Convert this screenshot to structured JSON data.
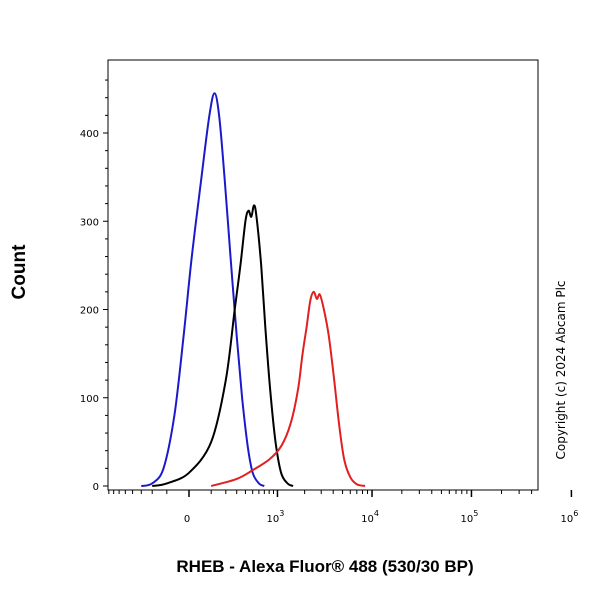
{
  "chart_data": {
    "type": "line",
    "title": "",
    "xlabel": "RHEB - Alexa Fluor® 488 (530/30 BP)",
    "ylabel": "Count",
    "xscale": "biexponential",
    "ylim": [
      0,
      480
    ],
    "grid": false,
    "legend": "none",
    "copyright": "Copyright (c) 2024 Abcam Plc",
    "x_ticks": [
      {
        "value": 0,
        "label": "0",
        "sup": ""
      },
      {
        "value": 1000,
        "label": "10",
        "sup": "3"
      },
      {
        "value": 10000,
        "label": "10",
        "sup": "4"
      },
      {
        "value": 100000,
        "label": "10",
        "sup": "5"
      },
      {
        "value": 1000000,
        "label": "10",
        "sup": "6"
      }
    ],
    "y_ticks": [
      {
        "value": 0,
        "label": "0"
      },
      {
        "value": 100,
        "label": "100"
      },
      {
        "value": 200,
        "label": "200"
      },
      {
        "value": 300,
        "label": "300"
      },
      {
        "value": 400,
        "label": "400"
      }
    ],
    "series": [
      {
        "color": "#1a1acc",
        "points": [
          [
            -300,
            0
          ],
          [
            -200,
            3
          ],
          [
            -120,
            20
          ],
          [
            -60,
            80
          ],
          [
            -20,
            170
          ],
          [
            10,
            260
          ],
          [
            50,
            350
          ],
          [
            90,
            420
          ],
          [
            120,
            445
          ],
          [
            150,
            420
          ],
          [
            190,
            350
          ],
          [
            240,
            260
          ],
          [
            300,
            170
          ],
          [
            360,
            100
          ],
          [
            430,
            45
          ],
          [
            500,
            15
          ],
          [
            600,
            3
          ],
          [
            700,
            0
          ]
        ]
      },
      {
        "color": "#000000",
        "points": [
          [
            -200,
            0
          ],
          [
            -100,
            3
          ],
          [
            0,
            15
          ],
          [
            100,
            50
          ],
          [
            200,
            120
          ],
          [
            280,
            200
          ],
          [
            340,
            250
          ],
          [
            400,
            300
          ],
          [
            440,
            312
          ],
          [
            480,
            305
          ],
          [
            520,
            318
          ],
          [
            560,
            305
          ],
          [
            640,
            250
          ],
          [
            720,
            180
          ],
          [
            820,
            110
          ],
          [
            950,
            50
          ],
          [
            1100,
            15
          ],
          [
            1300,
            3
          ],
          [
            1500,
            0
          ]
        ]
      },
      {
        "color": "#e02020",
        "points": [
          [
            100,
            0
          ],
          [
            300,
            8
          ],
          [
            500,
            18
          ],
          [
            800,
            30
          ],
          [
            1100,
            45
          ],
          [
            1400,
            70
          ],
          [
            1700,
            110
          ],
          [
            1900,
            150
          ],
          [
            2100,
            180
          ],
          [
            2300,
            210
          ],
          [
            2500,
            220
          ],
          [
            2700,
            212
          ],
          [
            2900,
            217
          ],
          [
            3200,
            200
          ],
          [
            3600,
            170
          ],
          [
            4100,
            120
          ],
          [
            4600,
            70
          ],
          [
            5200,
            30
          ],
          [
            6000,
            10
          ],
          [
            7000,
            2
          ],
          [
            8500,
            0
          ]
        ]
      }
    ]
  }
}
